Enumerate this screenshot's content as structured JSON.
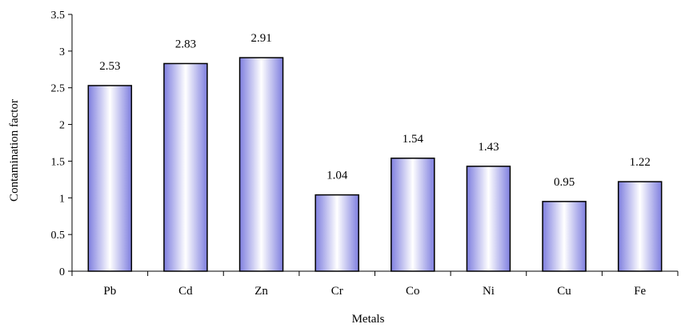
{
  "chart_data": {
    "type": "bar",
    "categories": [
      "Pb",
      "Cd",
      "Zn",
      "Cr",
      "Co",
      "Ni",
      "Cu",
      "Fe"
    ],
    "values": [
      2.53,
      2.83,
      2.91,
      1.04,
      1.54,
      1.43,
      0.95,
      1.22
    ],
    "data_labels": [
      "2.53",
      "2.83",
      "2.91",
      "1.04",
      "1.54",
      "1.43",
      "0.95",
      "1.22"
    ],
    "xlabel": "Metals",
    "ylabel": "Contamination factor",
    "ylim": [
      0,
      3.5
    ],
    "yticks": [
      "0",
      "0.5",
      "1",
      "1.5",
      "2",
      "2.5",
      "3",
      "3.5"
    ],
    "grid": false,
    "legend": "none",
    "bar_gradient": [
      "#ffffff",
      "#ccccff",
      "#7f7fdf"
    ]
  }
}
